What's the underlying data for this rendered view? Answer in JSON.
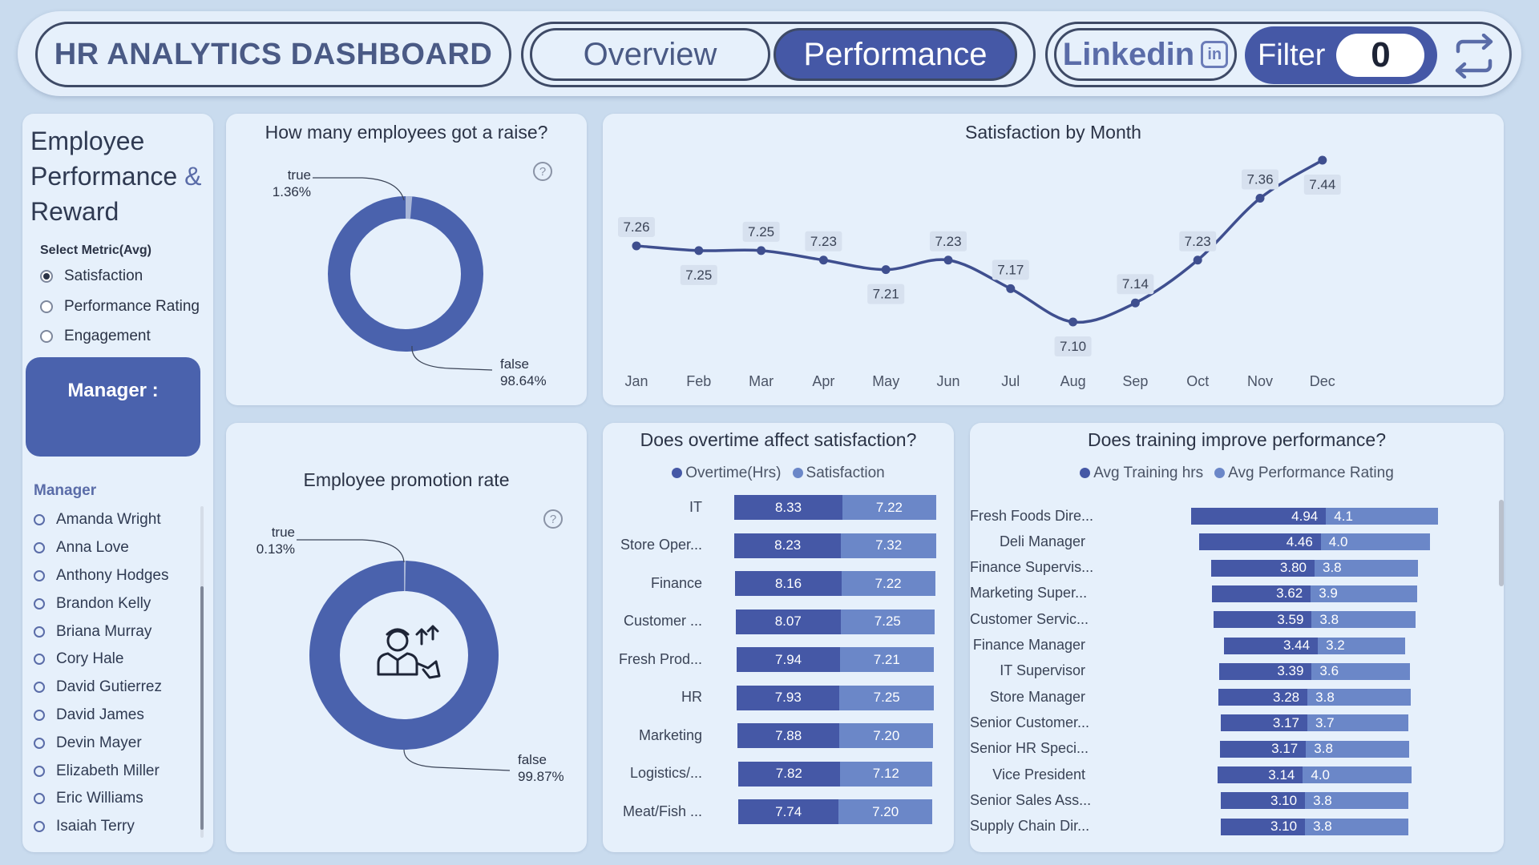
{
  "header": {
    "title": "HR ANALYTICS DASHBOARD",
    "tabs": [
      "Overview",
      "Performance"
    ],
    "linkedin_label": "Linkedin",
    "linkedin_icon": "in",
    "filter_label": "Filter",
    "filter_count": "0"
  },
  "colors": {
    "primary": "#4558a6",
    "secondary": "#6b87c8",
    "background": "#c9dbee",
    "card": "#e6f0fb"
  },
  "sidebar": {
    "heading_line1": "Employee",
    "heading_line2": "Performance",
    "heading_amp": "&",
    "heading_line3": "Reward",
    "metric_label": "Select Metric(Avg)",
    "metrics": [
      {
        "label": "Satisfaction",
        "selected": true
      },
      {
        "label": "Performance Rating",
        "selected": false
      },
      {
        "label": "Engagement",
        "selected": false
      }
    ],
    "manager_card_label": "Manager :",
    "manager_header": "Manager",
    "managers": [
      "Amanda Wright",
      "Anna Love",
      "Anthony Hodges",
      "Brandon Kelly",
      "Briana Murray",
      "Cory Hale",
      "David Gutierrez",
      "David James",
      "Devin Mayer",
      "Elizabeth Miller",
      "Eric Williams",
      "Isaiah Terry"
    ]
  },
  "raise_chart": {
    "title": "How many employees got a raise?",
    "help_icon": "question-icon",
    "true_label": "true",
    "true_pct": "1.36%",
    "false_label": "false",
    "false_pct": "98.64%"
  },
  "promotion_chart": {
    "title": "Employee promotion rate",
    "help_icon": "question-icon",
    "center_icon": "employee-promotion-icon",
    "true_label": "true",
    "true_pct": "0.13%",
    "false_label": "false",
    "false_pct": "99.87%"
  },
  "chart_data": [
    {
      "type": "pie",
      "title": "How many employees got a raise?",
      "labels": [
        "true",
        "false"
      ],
      "values": [
        1.36,
        98.64
      ]
    },
    {
      "type": "pie",
      "title": "Employee promotion rate",
      "labels": [
        "true",
        "false"
      ],
      "values": [
        0.13,
        99.87
      ]
    },
    {
      "type": "line",
      "title": "Satisfaction by Month",
      "x": [
        "Jan",
        "Feb",
        "Mar",
        "Apr",
        "May",
        "Jun",
        "Jul",
        "Aug",
        "Sep",
        "Oct",
        "Nov",
        "Dec"
      ],
      "values": [
        7.26,
        7.25,
        7.25,
        7.23,
        7.21,
        7.23,
        7.17,
        7.1,
        7.14,
        7.23,
        7.36,
        7.44
      ],
      "labels": [
        "7.26",
        "7.25",
        "7.25",
        "7.23",
        "7.21",
        "7.23",
        "7.17",
        "7.10",
        "7.14",
        "7.23",
        "7.36",
        "7.44"
      ],
      "grid": false
    },
    {
      "type": "bar",
      "title": "Does overtime affect satisfaction?",
      "orientation": "horizontal-stacked",
      "categories": [
        "IT",
        "Store Oper...",
        "Finance",
        "Customer ...",
        "Fresh Prod...",
        "HR",
        "Marketing",
        "Logistics/...",
        "Meat/Fish ..."
      ],
      "series": [
        {
          "name": "Overtime(Hrs)",
          "values": [
            8.33,
            8.23,
            8.16,
            8.07,
            7.94,
            7.93,
            7.88,
            7.82,
            7.74
          ],
          "labels": [
            "8.33",
            "8.23",
            "8.16",
            "8.07",
            "7.94",
            "7.93",
            "7.88",
            "7.82",
            "7.74"
          ]
        },
        {
          "name": "Satisfaction",
          "values": [
            7.22,
            7.32,
            7.22,
            7.25,
            7.21,
            7.25,
            7.2,
            7.12,
            7.2
          ],
          "labels": [
            "7.22",
            "7.32",
            "7.22",
            "7.25",
            "7.21",
            "7.25",
            "7.20",
            "7.12",
            "7.20"
          ]
        }
      ]
    },
    {
      "type": "bar",
      "title": "Does training improve performance?",
      "orientation": "horizontal-stacked",
      "categories": [
        "Fresh Foods Dire...",
        "Deli Manager",
        "Finance Supervis...",
        "Marketing Super...",
        "Customer Servic...",
        "Finance Manager",
        "IT Supervisor",
        "Store Manager",
        "Senior Customer...",
        "Senior HR Speci...",
        "Vice President",
        "Senior Sales Ass...",
        "Supply Chain Dir..."
      ],
      "series": [
        {
          "name": "Avg Training hrs",
          "values": [
            4.94,
            4.46,
            3.8,
            3.62,
            3.59,
            3.44,
            3.39,
            3.28,
            3.17,
            3.17,
            3.14,
            3.1,
            3.1
          ],
          "labels": [
            "4.94",
            "4.46",
            "3.80",
            "3.62",
            "3.59",
            "3.44",
            "3.39",
            "3.28",
            "3.17",
            "3.17",
            "3.14",
            "3.10",
            "3.10"
          ]
        },
        {
          "name": "Avg Performance Rating",
          "values": [
            4.1,
            4.0,
            3.8,
            3.9,
            3.8,
            3.2,
            3.6,
            3.8,
            3.7,
            3.8,
            4.0,
            3.8,
            3.8
          ],
          "labels": [
            "4.1",
            "4.0",
            "3.8",
            "3.9",
            "3.8",
            "3.2",
            "3.6",
            "3.8",
            "3.7",
            "3.8",
            "4.0",
            "3.8",
            "3.8"
          ]
        }
      ]
    }
  ]
}
